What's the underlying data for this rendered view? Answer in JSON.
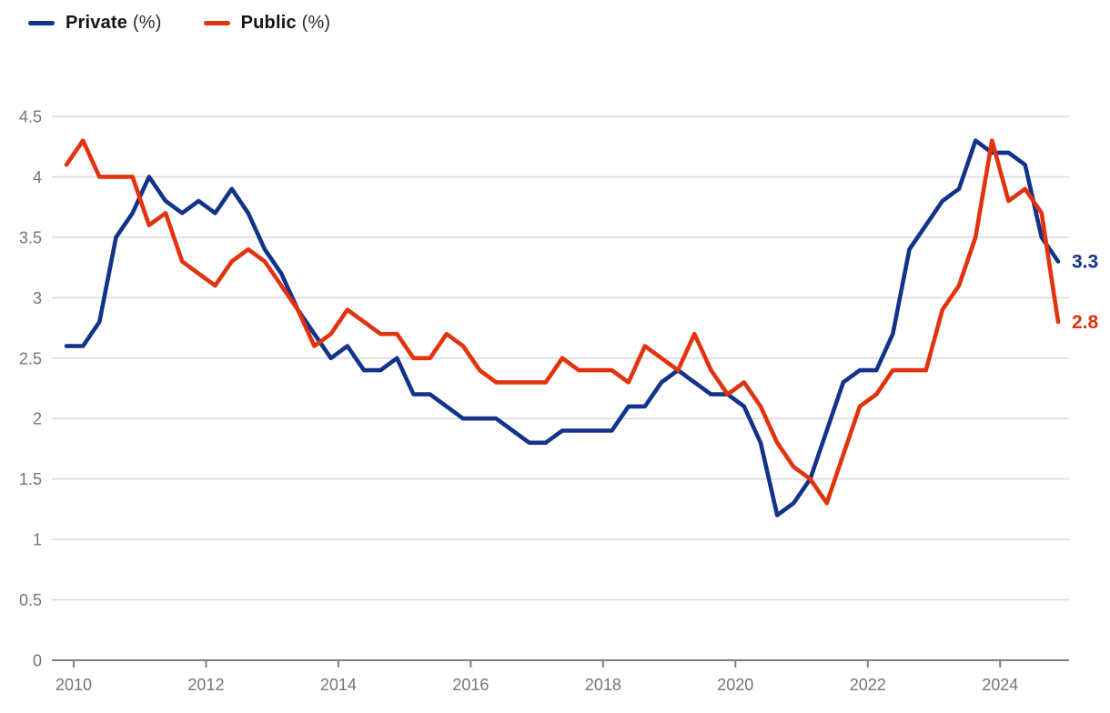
{
  "legend": {
    "items": [
      {
        "name": "Private",
        "unit": "(%)"
      },
      {
        "name": "Public",
        "unit": "(%)"
      }
    ]
  },
  "end_labels": {
    "private": "3.3",
    "public": "2.8"
  },
  "colors": {
    "private": "#12338a",
    "public": "#e2320e",
    "gridline": "#d8d8d8",
    "axis": "#7f7f7f",
    "tick_text": "#757575",
    "background": "#ffffff"
  },
  "chart_data": {
    "type": "line",
    "title": "",
    "xlabel": "",
    "ylabel": "",
    "ylim": [
      0,
      4.5
    ],
    "grid": "horizontal",
    "legend_position": "top-left",
    "yticks": [
      "4.5",
      "4",
      "3.5",
      "3",
      "2.5",
      "2",
      "1.5",
      "1",
      "0.5",
      "0"
    ],
    "xticks": [
      "2010",
      "2012",
      "2014",
      "2016",
      "2018",
      "2020",
      "2022",
      "2024"
    ],
    "x": [
      "2010 Q1",
      "2010 Q2",
      "2010 Q3",
      "2010 Q4",
      "2011 Q1",
      "2011 Q2",
      "2011 Q3",
      "2011 Q4",
      "2012 Q1",
      "2012 Q2",
      "2012 Q3",
      "2012 Q4",
      "2013 Q1",
      "2013 Q2",
      "2013 Q3",
      "2013 Q4",
      "2014 Q1",
      "2014 Q2",
      "2014 Q3",
      "2014 Q4",
      "2015 Q1",
      "2015 Q2",
      "2015 Q3",
      "2015 Q4",
      "2016 Q1",
      "2016 Q2",
      "2016 Q3",
      "2016 Q4",
      "2017 Q1",
      "2017 Q2",
      "2017 Q3",
      "2017 Q4",
      "2018 Q1",
      "2018 Q2",
      "2018 Q3",
      "2018 Q4",
      "2019 Q1",
      "2019 Q2",
      "2019 Q3",
      "2019 Q4",
      "2020 Q1",
      "2020 Q2",
      "2020 Q3",
      "2020 Q4",
      "2021 Q1",
      "2021 Q2",
      "2021 Q3",
      "2021 Q4",
      "2022 Q1",
      "2022 Q2",
      "2022 Q3",
      "2022 Q4",
      "2023 Q1",
      "2023 Q2",
      "2023 Q3",
      "2023 Q4",
      "2024 Q1",
      "2024 Q2",
      "2024 Q3",
      "2024 Q4",
      "2025 Q1"
    ],
    "series": [
      {
        "name": "Private",
        "unit": "(%)",
        "color": "#12338a",
        "end_label": "3.3",
        "values": [
          2.6,
          2.6,
          2.8,
          3.5,
          3.7,
          4.0,
          3.8,
          3.7,
          3.8,
          3.7,
          3.9,
          3.7,
          3.4,
          3.2,
          2.9,
          2.7,
          2.5,
          2.6,
          2.4,
          2.4,
          2.5,
          2.2,
          2.2,
          2.1,
          2.0,
          2.0,
          2.0,
          1.9,
          1.8,
          1.8,
          1.9,
          1.9,
          1.9,
          1.9,
          2.1,
          2.1,
          2.3,
          2.4,
          2.3,
          2.2,
          2.2,
          2.1,
          1.8,
          1.2,
          1.3,
          1.5,
          1.9,
          2.3,
          2.4,
          2.4,
          2.7,
          3.4,
          3.6,
          3.8,
          3.9,
          4.3,
          4.2,
          4.2,
          4.1,
          3.5,
          3.3
        ]
      },
      {
        "name": "Public",
        "unit": "(%)",
        "color": "#e2320e",
        "end_label": "2.8",
        "values": [
          4.1,
          4.3,
          4.0,
          4.0,
          4.0,
          3.6,
          3.7,
          3.3,
          3.2,
          3.1,
          3.3,
          3.4,
          3.3,
          3.1,
          2.9,
          2.6,
          2.7,
          2.9,
          2.8,
          2.7,
          2.7,
          2.5,
          2.5,
          2.7,
          2.6,
          2.4,
          2.3,
          2.3,
          2.3,
          2.3,
          2.5,
          2.4,
          2.4,
          2.4,
          2.3,
          2.6,
          2.5,
          2.4,
          2.7,
          2.4,
          2.2,
          2.3,
          2.1,
          1.8,
          1.6,
          1.5,
          1.3,
          1.7,
          2.1,
          2.2,
          2.4,
          2.4,
          2.4,
          2.9,
          3.1,
          3.5,
          4.3,
          3.8,
          3.9,
          3.7,
          2.8
        ]
      }
    ]
  }
}
